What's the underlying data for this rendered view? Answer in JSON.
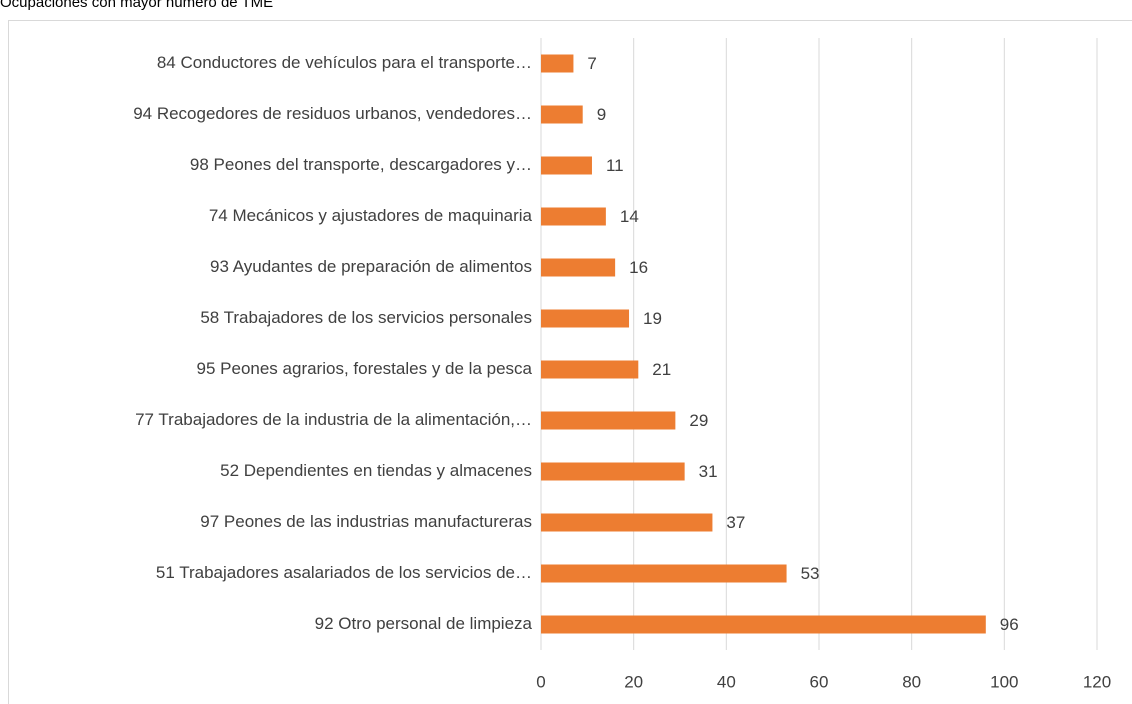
{
  "chart_data": {
    "type": "bar",
    "orientation": "horizontal",
    "title": "Ocupaciones con mayor número de TME",
    "categories": [
      "84 Conductores de vehículos para el transporte…",
      "94 Recogedores de residuos urbanos, vendedores…",
      "98 Peones del transporte, descargadores y…",
      "74 Mecánicos y ajustadores de maquinaria",
      "93 Ayudantes de preparación de alimentos",
      "58 Trabajadores de los servicios personales",
      "95 Peones agrarios, forestales y de la pesca",
      "77 Trabajadores de la industria de la alimentación,…",
      "52 Dependientes en tiendas y almacenes",
      "97 Peones de las industrias manufactureras",
      "51 Trabajadores asalariados de los servicios de…",
      "92 Otro personal de limpieza"
    ],
    "values": [
      7,
      9,
      11,
      14,
      16,
      19,
      21,
      29,
      31,
      37,
      53,
      96
    ],
    "color": "#ed7d31",
    "xlim": [
      0,
      120
    ],
    "xticks": [
      0,
      20,
      40,
      60,
      80,
      100,
      120
    ],
    "grid": true
  }
}
